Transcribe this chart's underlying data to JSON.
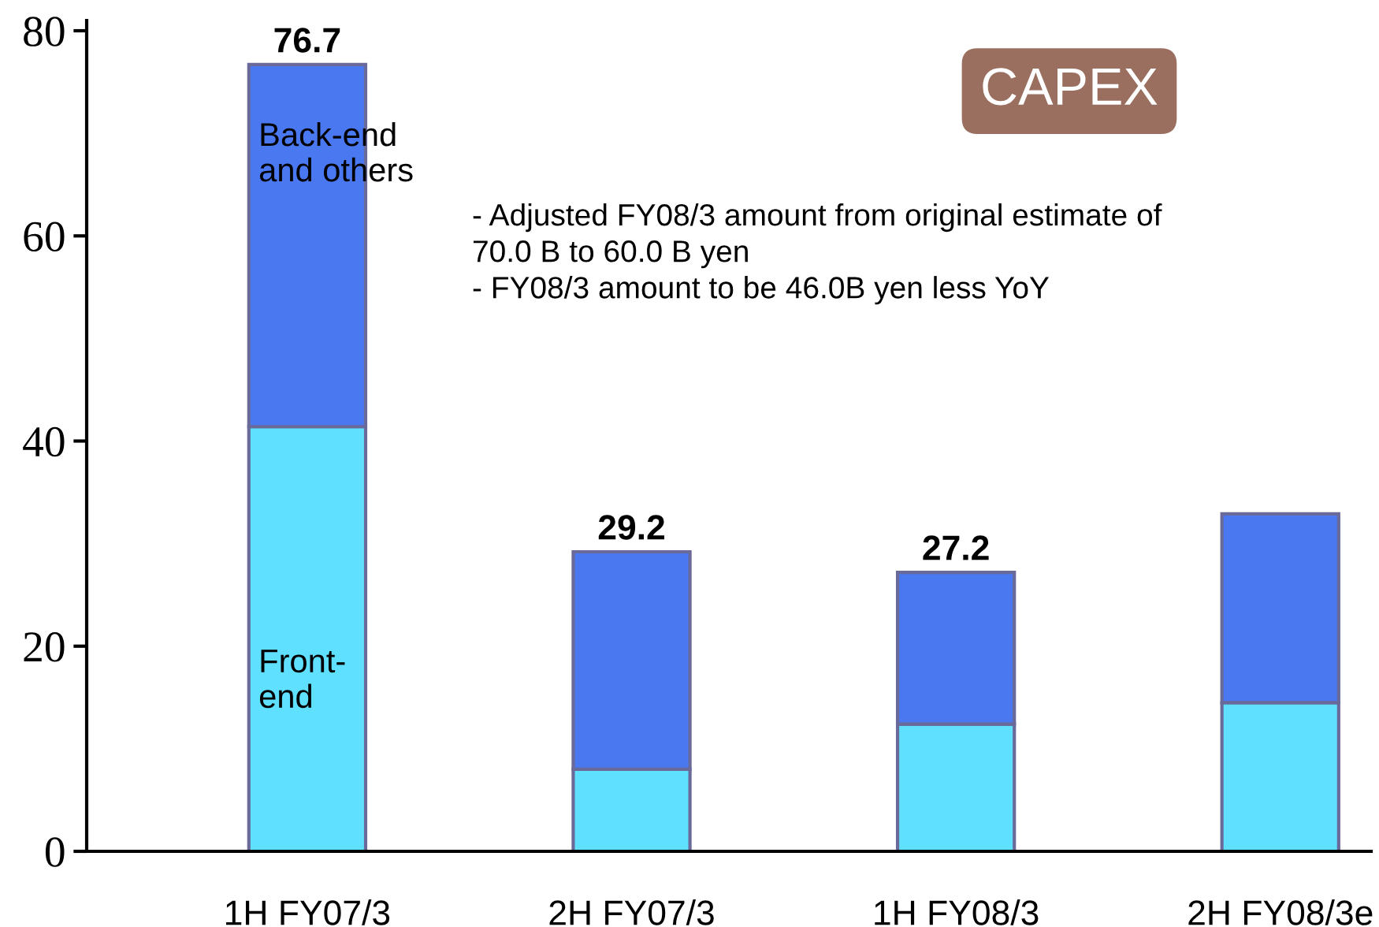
{
  "chart_data": {
    "type": "bar",
    "stacked": true,
    "title": "CAPEX",
    "categories": [
      "1H FY07/3",
      "2H FY07/3",
      "1H FY08/3",
      "2H FY08/3e"
    ],
    "series": [
      {
        "name": "Front-\nend",
        "color": "#5fe0ff",
        "values": [
          41.4,
          8.0,
          12.4,
          14.5
        ]
      },
      {
        "name": "Back-end\nand others",
        "color": "#4a78f0",
        "values": [
          35.3,
          21.2,
          14.8,
          18.4
        ]
      }
    ],
    "totals": [
      "76.7",
      "29.2",
      "27.2",
      null
    ],
    "annotations": [
      "- Adjusted FY08/3 amount from original estimate of\n70.0 B to 60.0 B yen\n- FY08/3 amount to be 46.0B yen less YoY"
    ],
    "ylim": [
      0,
      81
    ],
    "yticks": [
      0,
      20,
      40,
      60,
      80
    ],
    "grid": false,
    "legend": false
  }
}
